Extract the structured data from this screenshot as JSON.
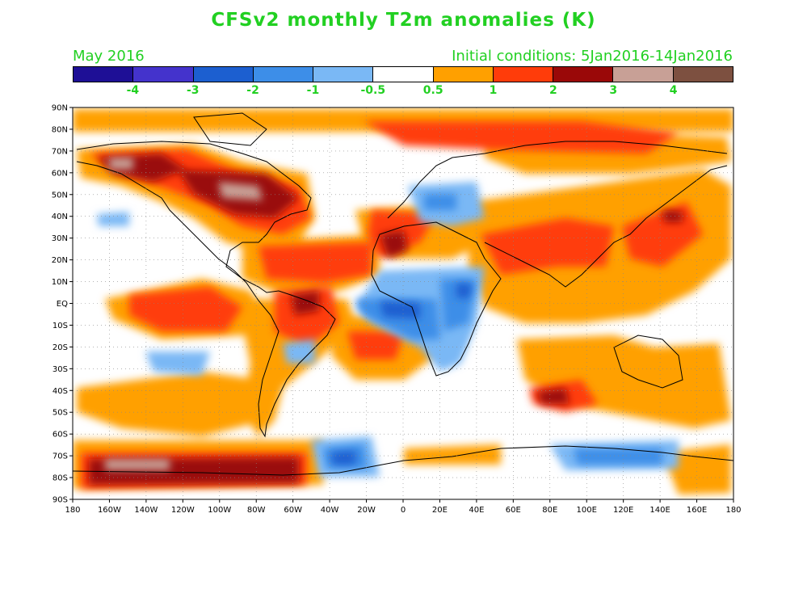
{
  "title": "CFSv2 monthly T2m anomalies (K)",
  "subtitle_left": "May 2016",
  "subtitle_right": "Initial conditions: 5Jan2016-14Jan2016",
  "colorbar": {
    "colors": [
      "#1e0f96",
      "#4433cc",
      "#1c5fd0",
      "#3d8ee8",
      "#7ab8f5",
      "#ffffff",
      "#ffa000",
      "#ff3c0a",
      "#9a0808",
      "#c8a096",
      "#7d5040"
    ],
    "labels": [
      "-4",
      "-3",
      "-2",
      "-1",
      "-0.5",
      "0.5",
      "1",
      "2",
      "3",
      "4"
    ]
  },
  "lat_labels": [
    "90N",
    "80N",
    "70N",
    "60N",
    "50N",
    "40N",
    "30N",
    "20N",
    "10N",
    "EQ",
    "10S",
    "20S",
    "30S",
    "40S",
    "50S",
    "60S",
    "70S",
    "80S",
    "90S"
  ],
  "lon_labels": [
    "180",
    "160W",
    "140W",
    "120W",
    "100W",
    "80W",
    "60W",
    "40W",
    "20W",
    "0",
    "20E",
    "40E",
    "60E",
    "80E",
    "100E",
    "120E",
    "140E",
    "160E",
    "180"
  ]
}
